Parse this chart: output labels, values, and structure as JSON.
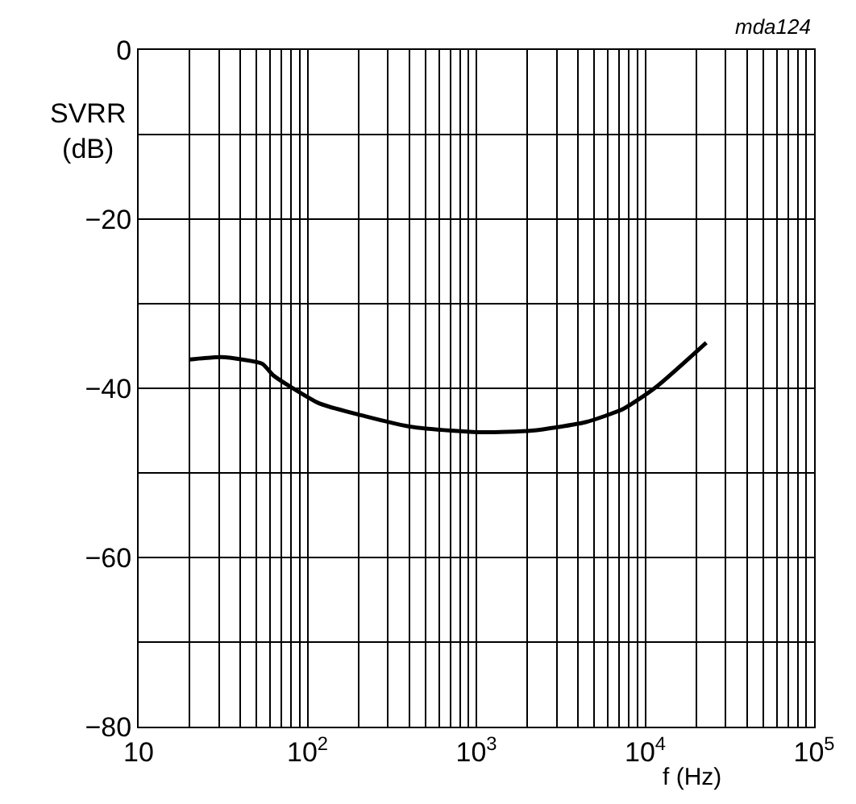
{
  "chart_data": {
    "type": "line",
    "xlabel": "f (Hz)",
    "ylabel": "SVRR\n(dB)",
    "annotations": [
      "mda124"
    ],
    "log": "x",
    "grid": true,
    "marker": "none",
    "line_style": "solid",
    "xlim": [
      10,
      100000
    ],
    "ylim": [
      -80,
      0
    ],
    "xticks": [
      10,
      {
        "value": 100,
        "label": "10$^{2}$"
      },
      {
        "value": 1000,
        "label": "10$^{3}$"
      },
      {
        "value": 10000,
        "label": "10$^{4}$"
      },
      {
        "value": 100000,
        "label": "10$^{5}$"
      }
    ],
    "yticks": [
      0,
      {
        "value": -10,
        "label": null
      },
      {
        "value": -20,
        "label": "−20"
      },
      {
        "value": -30,
        "label": null
      },
      {
        "value": -40,
        "label": "−40"
      },
      {
        "value": -50,
        "label": null
      },
      {
        "value": -60,
        "label": "−60"
      },
      {
        "value": -70,
        "label": null
      },
      {
        "value": -80,
        "label": "−80"
      }
    ],
    "series": [
      {
        "color": "#000000",
        "x": [
          20,
          31,
          41,
          54,
          63,
          79,
          118,
          219,
          397,
          709,
          1100,
          2130,
          4440,
          7460,
          11500,
          23000
        ],
        "values": [
          -36.6,
          -36.3,
          -36.6,
          -37.1,
          -38.5,
          -39.8,
          -41.8,
          -43.3,
          -44.5,
          -45.0,
          -45.2,
          -45.0,
          -44.0,
          -42.4,
          -39.9,
          -34.6
        ]
      }
    ]
  }
}
